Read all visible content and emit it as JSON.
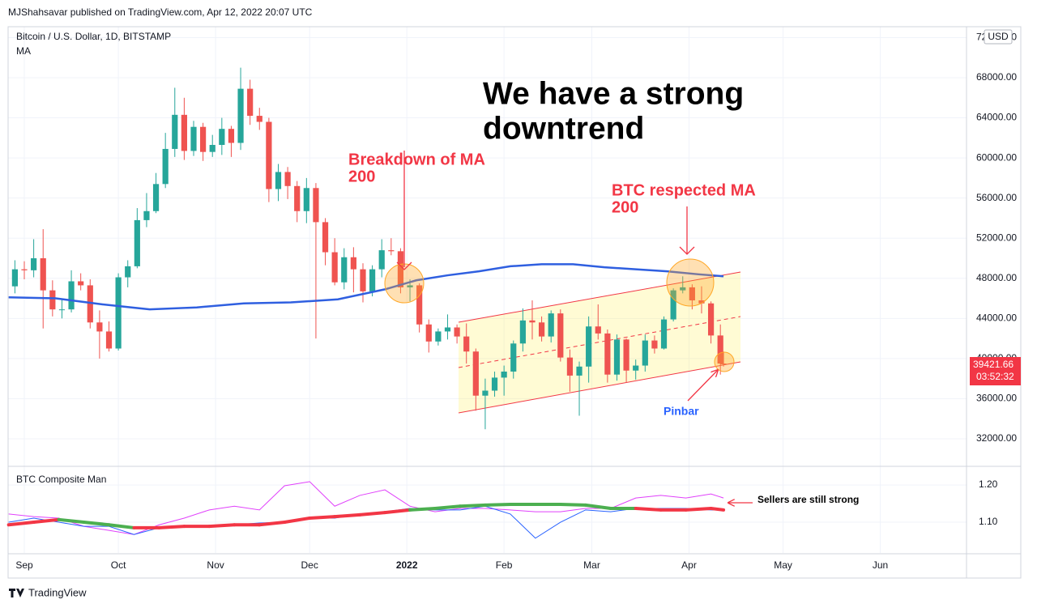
{
  "header": "MJShahsavar published on TradingView.com, Apr 12, 2022 20:07 UTC",
  "footer": "TradingView",
  "chart_data": [
    {
      "type": "candlestick",
      "title": "Bitcoin / U.S. Dollar, 1D, BITSTAMP",
      "currency": "USD",
      "countdown": "03:52:32",
      "up_color": "#26a69a",
      "down_color": "#ef5350",
      "x": [
        -3,
        0,
        3,
        6,
        9,
        12,
        15,
        18,
        21,
        24,
        27,
        30,
        33,
        36,
        39,
        42,
        45,
        48,
        51,
        54,
        57,
        60,
        63,
        66,
        69,
        72,
        75,
        78,
        81,
        84,
        87,
        90,
        93,
        96,
        99,
        102,
        105,
        108,
        111,
        114,
        117,
        120,
        123,
        126,
        129,
        132,
        135,
        138,
        141,
        144,
        147,
        150,
        153,
        156,
        159,
        162,
        165,
        168,
        171,
        174,
        177,
        180,
        183,
        186,
        189,
        192,
        195,
        198,
        201,
        204,
        207,
        210,
        213,
        216,
        219,
        222,
        223
      ],
      "open": [
        47200,
        48900,
        48800,
        50000,
        46800,
        44900,
        44900,
        47700,
        47300,
        43600,
        42700,
        41000,
        48100,
        49200,
        53800,
        54700,
        57400,
        60900,
        64300,
        60700,
        63100,
        60600,
        61300,
        62900,
        61500,
        66900,
        64200,
        63600,
        56900,
        58600,
        57200,
        54700,
        57000,
        53600,
        50600,
        47600,
        50100,
        48900,
        46700,
        48900,
        50800,
        50700,
        47100,
        47300,
        43400,
        41700,
        42700,
        43100,
        42200,
        40700,
        36300,
        36800,
        38100,
        38700,
        41500,
        43800,
        43600,
        42200,
        44500,
        40100,
        38300,
        39200,
        43200,
        42500,
        38400,
        41900,
        38800,
        39300,
        41800,
        41000,
        43900,
        46800,
        47100,
        45800,
        45500,
        42300,
        39500
      ],
      "high": [
        49800,
        49700,
        51900,
        52900,
        47800,
        46000,
        48800,
        48500,
        47900,
        44800,
        43700,
        48500,
        49800,
        55000,
        56500,
        58500,
        62500,
        67000,
        66000,
        63700,
        63500,
        62300,
        64000,
        63200,
        69000,
        67800,
        65000,
        64000,
        59400,
        59100,
        57700,
        58000,
        57500,
        54000,
        52000,
        51000,
        51100,
        49500,
        49300,
        51900,
        52000,
        51000,
        47900,
        47500,
        43900,
        43000,
        44400,
        43400,
        43500,
        41000,
        38000,
        38700,
        39300,
        41800,
        45000,
        45800,
        44200,
        44800,
        44900,
        40900,
        39700,
        44200,
        45400,
        42900,
        42400,
        42000,
        39900,
        42400,
        42300,
        44200,
        47000,
        48200,
        47400,
        47200,
        45700,
        43400,
        40700
      ],
      "low": [
        46500,
        47900,
        48100,
        43000,
        44200,
        44000,
        44600,
        46800,
        43000,
        40000,
        40700,
        40800,
        47100,
        49000,
        53100,
        54500,
        57000,
        60100,
        59800,
        60200,
        59700,
        60100,
        60300,
        60100,
        60800,
        63300,
        62800,
        55600,
        55700,
        55900,
        53600,
        53500,
        42000,
        49300,
        47300,
        46900,
        46600,
        45600,
        46200,
        48100,
        50300,
        46500,
        45700,
        42600,
        40600,
        41300,
        41900,
        41500,
        39500,
        34800,
        32950,
        36200,
        36300,
        38000,
        40700,
        41900,
        41700,
        41600,
        39700,
        36700,
        34300,
        37600,
        41900,
        37600,
        37800,
        37600,
        37900,
        38700,
        40500,
        40900,
        43700,
        46500,
        44900,
        44500,
        41500,
        38400,
        39200
      ],
      "close": [
        48900,
        48800,
        50000,
        46800,
        44900,
        44900,
        47700,
        47300,
        43600,
        42700,
        41000,
        48100,
        49200,
        53800,
        54700,
        57400,
        60900,
        64300,
        60700,
        63100,
        60600,
        61300,
        62900,
        61500,
        66900,
        64200,
        63600,
        56900,
        58600,
        57200,
        54700,
        57000,
        53600,
        50600,
        47600,
        50100,
        48900,
        46700,
        48900,
        50800,
        50700,
        47100,
        47300,
        43400,
        41700,
        42700,
        43100,
        42200,
        40700,
        36300,
        36800,
        38100,
        38700,
        41500,
        43800,
        43600,
        42200,
        44500,
        40100,
        38300,
        39200,
        43200,
        42500,
        38400,
        41900,
        38800,
        39300,
        41800,
        41000,
        43900,
        46800,
        47100,
        45800,
        45500,
        42300,
        39500,
        39421.66
      ],
      "series": [
        {
          "name": "MA",
          "color": "#2f5fe0",
          "x": [
            -5,
            10,
            25,
            40,
            55,
            70,
            85,
            100,
            115,
            125,
            135,
            145,
            155,
            165,
            175,
            185,
            195,
            205,
            215,
            223
          ],
          "values": [
            46100,
            46000,
            45400,
            44900,
            45100,
            45500,
            45600,
            45900,
            46900,
            47800,
            48300,
            48700,
            49200,
            49400,
            49400,
            49100,
            48900,
            48700,
            48400,
            48200
          ]
        }
      ],
      "xlim": [
        -5.17,
        300.5
      ],
      "xticks": [
        {
          "value": 0,
          "label": "Sep"
        },
        {
          "value": 30,
          "label": "Oct"
        },
        {
          "value": 61,
          "label": "Nov"
        },
        {
          "value": 91,
          "label": "Dec"
        },
        {
          "value": 122,
          "label": "2022"
        },
        {
          "value": 153,
          "label": "Feb"
        },
        {
          "value": 181,
          "label": "Mar"
        },
        {
          "value": 212,
          "label": "Apr"
        },
        {
          "value": 242,
          "label": "May"
        },
        {
          "value": 273,
          "label": "Jun"
        }
      ],
      "ylim": [
        29335,
        73085
      ],
      "yticks": [
        {
          "value": 32000,
          "label": "32000.00"
        },
        {
          "value": 36000,
          "label": "36000.00"
        },
        {
          "value": 40000,
          "label": "40000.00"
        },
        {
          "value": 44000,
          "label": "44000.00"
        },
        {
          "value": 48000,
          "label": "48000.00"
        },
        {
          "value": 52000,
          "label": "52000.00"
        },
        {
          "value": 56000,
          "label": "56000.00"
        },
        {
          "value": 60000,
          "label": "60000.00"
        },
        {
          "value": 64000,
          "label": "64000.00"
        },
        {
          "value": 68000,
          "label": "68000.00"
        },
        {
          "value": 72000,
          "label": "72000.00"
        }
      ],
      "grid": true,
      "annotations": {
        "headline": [
          "We have a strong",
          "downtrend"
        ],
        "breakdown": [
          "Breakdown of MA",
          "200"
        ],
        "respected": [
          "BTC respected MA",
          "200"
        ],
        "pinbar": "Pinbar"
      }
    },
    {
      "type": "line",
      "title": "BTC Composite Man",
      "x": [
        -5,
        3,
        11,
        19,
        27,
        35,
        43,
        51,
        59,
        67,
        75,
        83,
        91,
        99,
        107,
        115,
        123,
        131,
        139,
        147,
        155,
        163,
        171,
        179,
        187,
        195,
        203,
        211,
        219,
        223
      ],
      "series": [
        {
          "color": "#e040fb",
          "width": 1,
          "values": [
            1.122,
            1.115,
            1.111,
            1.089,
            1.078,
            1.067,
            1.093,
            1.111,
            1.133,
            1.143,
            1.133,
            1.198,
            1.209,
            1.143,
            1.172,
            1.187,
            1.143,
            1.128,
            1.137,
            1.137,
            1.133,
            1.128,
            1.128,
            1.137,
            1.137,
            1.165,
            1.172,
            1.165,
            1.176,
            1.165
          ]
        },
        {
          "color": "#2962ff",
          "width": 1,
          "values": [
            1.1,
            1.111,
            1.1,
            1.089,
            1.089,
            1.067,
            1.085,
            1.089,
            1.089,
            1.093,
            1.098,
            1.1,
            1.111,
            1.111,
            1.122,
            1.128,
            1.137,
            1.133,
            1.133,
            1.143,
            1.122,
            1.057,
            1.1,
            1.133,
            1.128,
            1.137,
            1.137,
            1.137,
            1.133,
            1.133
          ]
        },
        {
          "width": 4,
          "values": [
            1.093,
            1.1,
            1.107,
            1.1,
            1.093,
            1.085,
            1.085,
            1.089,
            1.089,
            1.093,
            1.093,
            1.1,
            1.111,
            1.115,
            1.12,
            1.126,
            1.133,
            1.137,
            1.143,
            1.146,
            1.148,
            1.148,
            1.148,
            1.146,
            1.137,
            1.137,
            1.133,
            1.133,
            1.137,
            1.133
          ],
          "colors": [
            "#f23645",
            "#f23645",
            "#4caf50",
            "#4caf50",
            "#4caf50",
            "#f23645",
            "#f23645",
            "#f23645",
            "#f23645",
            "#f23645",
            "#f23645",
            "#f23645",
            "#f23645",
            "#f23645",
            "#f23645",
            "#f23645",
            "#4caf50",
            "#4caf50",
            "#4caf50",
            "#4caf50",
            "#4caf50",
            "#4caf50",
            "#4caf50",
            "#4caf50",
            "#4caf50",
            "#f23645",
            "#f23645",
            "#f23645",
            "#f23645",
            "#f23645"
          ]
        }
      ],
      "ylim": [
        1.0174,
        1.248
      ],
      "yticks": [
        {
          "value": 1.1,
          "label": "1.10"
        },
        {
          "value": 1.2,
          "label": "1.20"
        }
      ],
      "annotation": "Sellers are still strong"
    }
  ]
}
